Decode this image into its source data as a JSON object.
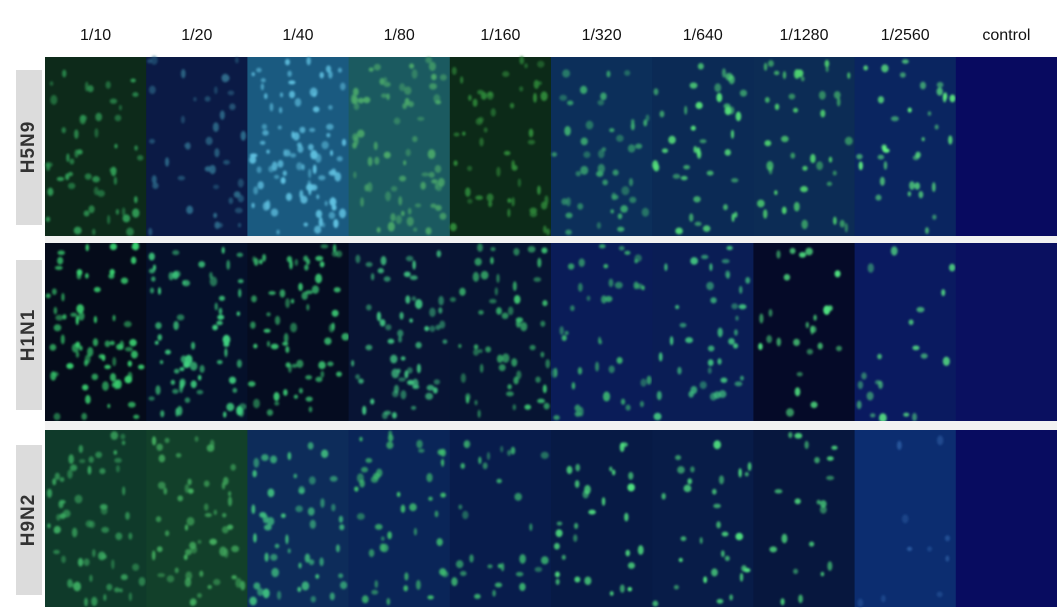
{
  "columns": [
    "1/10",
    "1/20",
    "1/40",
    "1/80",
    "1/160",
    "1/320",
    "1/640",
    "1/1280",
    "1/2560",
    "control"
  ],
  "rows": [
    "H5N9",
    "H1N1",
    "H9N2"
  ]
}
